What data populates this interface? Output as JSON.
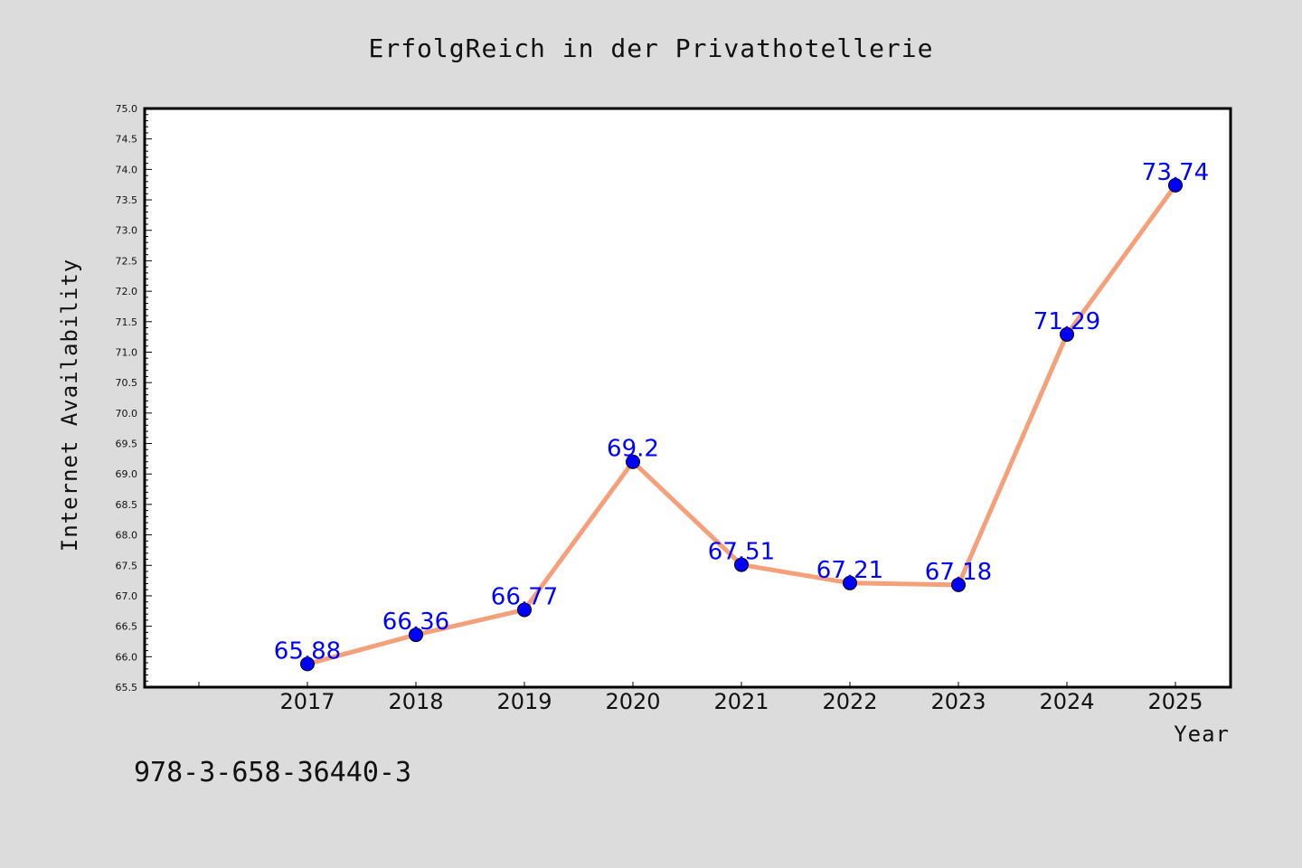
{
  "chart_data": {
    "type": "line",
    "title": "ErfolgReich in der Privathotellerie",
    "xlabel": "Year",
    "ylabel": "Internet Availability",
    "categories": [
      "2017",
      "2018",
      "2019",
      "2020",
      "2021",
      "2022",
      "2023",
      "2024",
      "2025"
    ],
    "series": [
      {
        "values": [
          65.88,
          66.36,
          66.77,
          69.2,
          67.51,
          67.21,
          67.18,
          71.29,
          73.74
        ]
      }
    ],
    "data_labels": [
      "65.88",
      "66.36",
      "66.77",
      "69.2",
      "67.51",
      "67.21",
      "67.18",
      "71.29",
      "73.74"
    ],
    "ylim": [
      65.5,
      75.0
    ],
    "y_tick_step": 0.5,
    "grid": false,
    "colors": {
      "line": "#f4a07a",
      "marker": "#0000ff",
      "label": "#0000ff",
      "background": "#dcdcdc",
      "plot_bg": "#ffffff"
    }
  },
  "footnote": "978-3-658-36440-3"
}
